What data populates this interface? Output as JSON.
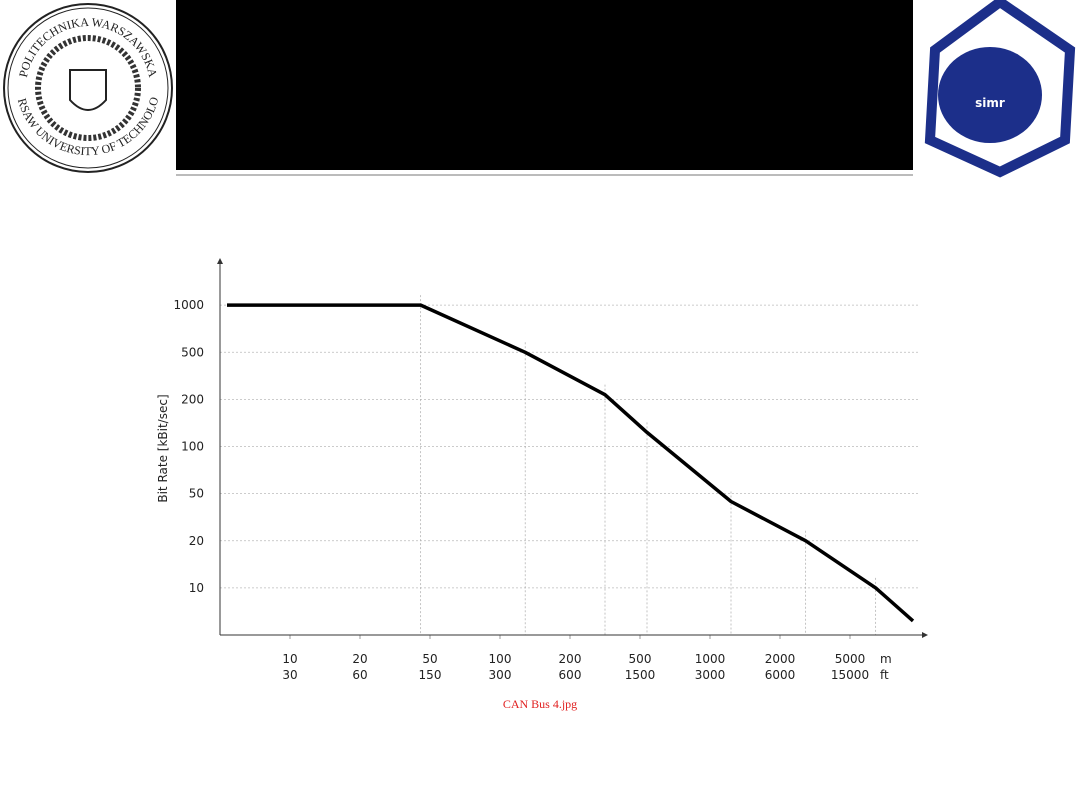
{
  "header": {
    "left_logo": {
      "outer_text": "POLITECHNIKA WARSZAWSKA",
      "inner_text": "WARSAW UNIVERSITY OF TECHNOLOGY"
    },
    "right_logo": {
      "text": "simr"
    }
  },
  "chart_data": {
    "type": "line",
    "y_label": "Bit Rate [kBit/sec]",
    "x_unit": "m",
    "x2_unit": "ft",
    "x": [
      1,
      46,
      136,
      350,
      550,
      1300,
      3100,
      6100,
      7700
    ],
    "values": [
      1000,
      1000,
      500,
      230,
      130,
      45,
      20,
      10,
      3
    ],
    "color": "#000000",
    "xlim": [
      0,
      8000
    ],
    "ylim": [
      0,
      1500
    ],
    "xticks": [
      10,
      20,
      50,
      100,
      200,
      500,
      1000,
      2000,
      5000
    ],
    "x2ticks": [
      30,
      60,
      150,
      300,
      600,
      1500,
      3000,
      6000,
      15000
    ],
    "yticks": [
      10,
      20,
      50,
      100,
      200,
      500,
      1000
    ],
    "grid": true
  },
  "caption": "CAN Bus 4.jpg"
}
